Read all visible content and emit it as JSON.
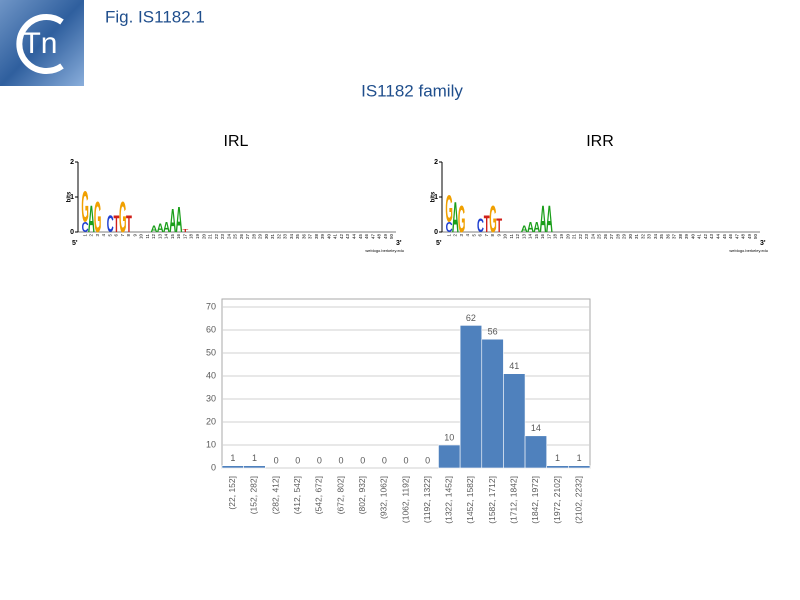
{
  "header": {
    "title": "Fig. IS1182.1",
    "subtitle": "IS1182 family",
    "logo_text": "Tn"
  },
  "logos": [
    {
      "title": "IRL",
      "ylabel": "bits",
      "ylim": [
        0,
        2
      ],
      "yticks": [
        0,
        1,
        2
      ],
      "start_label": "5'",
      "end_label": "3'",
      "credit": "weblogo.berkeley.edu",
      "positions": [
        1,
        2,
        3,
        4,
        5,
        6,
        7,
        8,
        9,
        10,
        11,
        12,
        13,
        14,
        15,
        16,
        17,
        18,
        19,
        20,
        21,
        22,
        23,
        24,
        25,
        26,
        27,
        28,
        29,
        30,
        31,
        32,
        33,
        34,
        35,
        36,
        37,
        38,
        39,
        40,
        41,
        42,
        43,
        44,
        45,
        46,
        47,
        48,
        49,
        50
      ],
      "stacks": [
        {
          "position": 1,
          "letters": [
            {
              "letter": "C",
              "bits": 0.3
            },
            {
              "letter": "G",
              "bits": 0.9
            }
          ]
        },
        {
          "position": 2,
          "letters": [
            {
              "letter": "A",
              "bits": 0.8
            }
          ]
        },
        {
          "position": 3,
          "letters": [
            {
              "letter": "G",
              "bits": 0.9
            }
          ]
        },
        {
          "position": 5,
          "letters": [
            {
              "letter": "C",
              "bits": 0.5
            }
          ]
        },
        {
          "position": 6,
          "letters": [
            {
              "letter": "T",
              "bits": 0.5
            }
          ]
        },
        {
          "position": 7,
          "letters": [
            {
              "letter": "G",
              "bits": 0.9
            }
          ]
        },
        {
          "position": 8,
          "letters": [
            {
              "letter": "T",
              "bits": 0.5
            }
          ]
        },
        {
          "position": 12,
          "letters": [
            {
              "letter": "A",
              "bits": 0.2
            }
          ]
        },
        {
          "position": 13,
          "letters": [
            {
              "letter": "A",
              "bits": 0.25
            }
          ]
        },
        {
          "position": 14,
          "letters": [
            {
              "letter": "A",
              "bits": 0.3
            }
          ]
        },
        {
          "position": 15,
          "letters": [
            {
              "letter": "A",
              "bits": 0.7
            }
          ]
        },
        {
          "position": 16,
          "letters": [
            {
              "letter": "A",
              "bits": 0.75
            }
          ]
        },
        {
          "position": 17,
          "letters": [
            {
              "letter": "T",
              "bits": 0.1
            }
          ]
        }
      ]
    },
    {
      "title": "IRR",
      "ylabel": "bits",
      "ylim": [
        0,
        2
      ],
      "yticks": [
        0,
        1,
        2
      ],
      "start_label": "5'",
      "end_label": "3'",
      "credit": "weblogo.berkeley.edu",
      "positions": [
        1,
        2,
        3,
        4,
        5,
        6,
        7,
        8,
        9,
        10,
        11,
        12,
        13,
        14,
        15,
        16,
        17,
        18,
        19,
        20,
        21,
        22,
        23,
        24,
        25,
        26,
        27,
        28,
        29,
        30,
        31,
        32,
        33,
        34,
        35,
        36,
        37,
        38,
        39,
        40,
        41,
        42,
        43,
        44,
        45,
        46,
        47,
        48,
        49,
        50
      ],
      "stacks": [
        {
          "position": 1,
          "letters": [
            {
              "letter": "C",
              "bits": 0.3
            },
            {
              "letter": "G",
              "bits": 0.8
            }
          ]
        },
        {
          "position": 2,
          "letters": [
            {
              "letter": "A",
              "bits": 0.9
            }
          ]
        },
        {
          "position": 3,
          "letters": [
            {
              "letter": "G",
              "bits": 0.8
            }
          ]
        },
        {
          "position": 6,
          "letters": [
            {
              "letter": "C",
              "bits": 0.4
            }
          ]
        },
        {
          "position": 7,
          "letters": [
            {
              "letter": "T",
              "bits": 0.5
            }
          ]
        },
        {
          "position": 8,
          "letters": [
            {
              "letter": "G",
              "bits": 0.8
            }
          ]
        },
        {
          "position": 9,
          "letters": [
            {
              "letter": "T",
              "bits": 0.4
            }
          ]
        },
        {
          "position": 13,
          "letters": [
            {
              "letter": "A",
              "bits": 0.2
            }
          ]
        },
        {
          "position": 14,
          "letters": [
            {
              "letter": "A",
              "bits": 0.3
            }
          ]
        },
        {
          "position": 15,
          "letters": [
            {
              "letter": "A",
              "bits": 0.3
            }
          ]
        },
        {
          "position": 16,
          "letters": [
            {
              "letter": "A",
              "bits": 0.8
            }
          ]
        },
        {
          "position": 17,
          "letters": [
            {
              "letter": "A",
              "bits": 0.8
            }
          ]
        }
      ]
    }
  ],
  "chart_data": {
    "type": "bar",
    "color": "#4f81bd",
    "categories": [
      "(22, 152]",
      "(152, 282]",
      "(282, 412]",
      "(412, 542]",
      "(542, 672]",
      "(672, 802]",
      "(802, 932]",
      "(932, 1062]",
      "(1062, 1192]",
      "(1192, 1322]",
      "(1322, 1452]",
      "(1452, 1582]",
      "(1582, 1712]",
      "(1712, 1842]",
      "(1842, 1972]",
      "(1972, 2102]",
      "(2102, 2232]"
    ],
    "values": [
      1,
      1,
      0,
      0,
      0,
      0,
      0,
      0,
      0,
      0,
      10,
      62,
      56,
      41,
      14,
      1,
      1
    ],
    "ylim": [
      0,
      70
    ],
    "yticks": [
      0,
      10,
      20,
      30,
      40,
      50,
      60,
      70
    ],
    "grid": true
  }
}
